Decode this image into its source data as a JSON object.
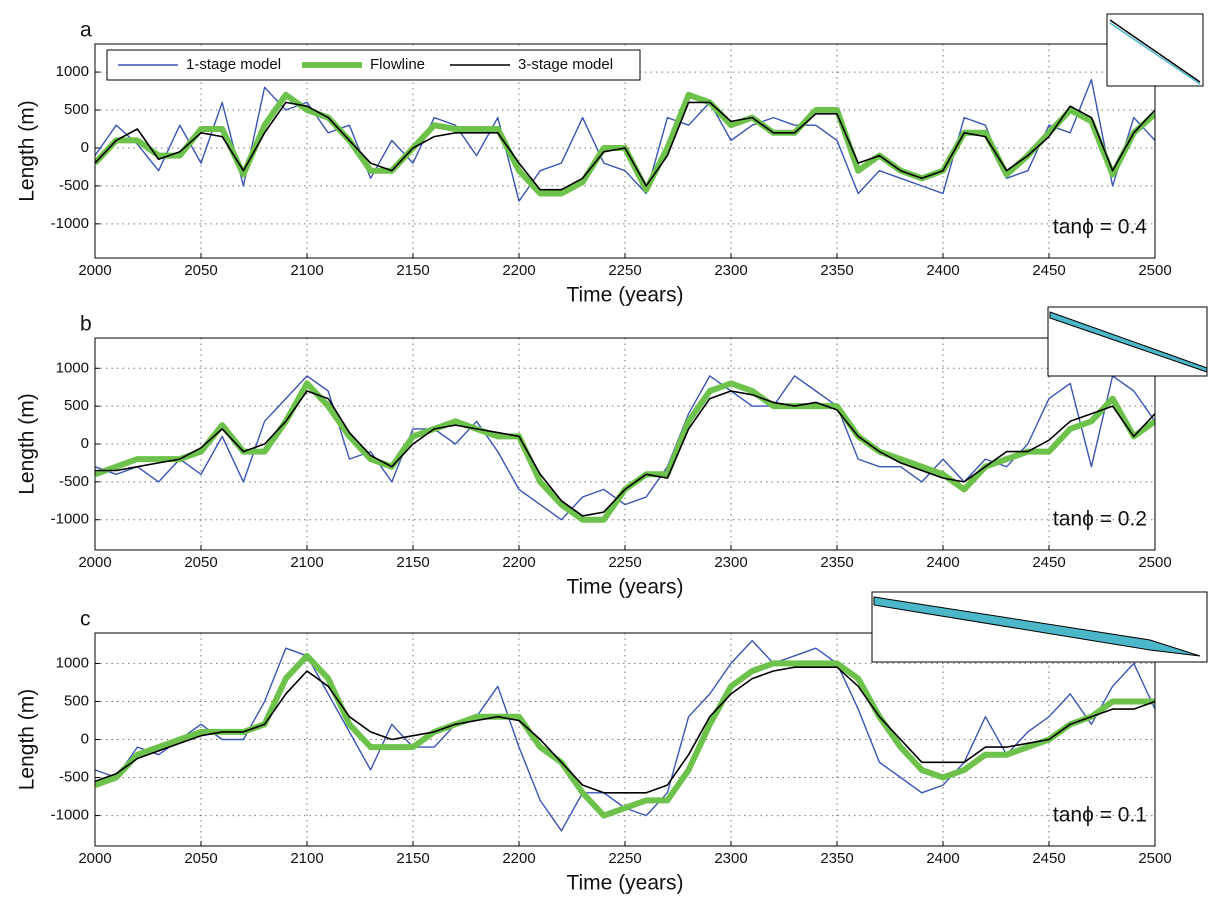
{
  "chart_data": [
    {
      "type": "line",
      "panel_label": "a",
      "annotation": "tanϕ = 0.4",
      "xlabel": "Time (years)",
      "ylabel": "Length (m)",
      "x": [
        2000,
        2010,
        2020,
        2030,
        2040,
        2050,
        2060,
        2070,
        2080,
        2090,
        2100,
        2110,
        2120,
        2130,
        2140,
        2150,
        2160,
        2170,
        2180,
        2190,
        2200,
        2210,
        2220,
        2230,
        2240,
        2250,
        2260,
        2270,
        2280,
        2290,
        2300,
        2310,
        2320,
        2330,
        2340,
        2350,
        2360,
        2370,
        2380,
        2390,
        2400,
        2410,
        2420,
        2430,
        2440,
        2450,
        2460,
        2470,
        2480,
        2490,
        2500
      ],
      "xlim": [
        2000,
        2500
      ],
      "xticks": [
        2000,
        2050,
        2100,
        2150,
        2200,
        2250,
        2300,
        2350,
        2400,
        2450,
        2500
      ],
      "ylim": [
        -1450,
        1370
      ],
      "yticks": [
        -1000,
        -500,
        0,
        500,
        1000
      ],
      "grid": true,
      "legend": "top-left",
      "series": [
        {
          "name": "1-stage model",
          "color": "#3a55b4",
          "values": [
            -100,
            300,
            50,
            -300,
            300,
            -200,
            600,
            -500,
            800,
            500,
            600,
            200,
            300,
            -400,
            100,
            -200,
            400,
            300,
            -100,
            400,
            -700,
            -300,
            -200,
            400,
            -200,
            -300,
            -600,
            400,
            300,
            600,
            100,
            300,
            400,
            300,
            300,
            100,
            -600,
            -300,
            -400,
            -500,
            -600,
            400,
            300,
            -400,
            -300,
            300,
            200,
            900,
            -500,
            400,
            100
          ]
        },
        {
          "name": "Flowline",
          "color": "#6cc24a",
          "values": [
            -200,
            100,
            100,
            -100,
            -100,
            250,
            250,
            -350,
            300,
            700,
            500,
            400,
            100,
            -300,
            -300,
            0,
            300,
            250,
            250,
            250,
            -300,
            -600,
            -600,
            -450,
            0,
            0,
            -550,
            0,
            700,
            600,
            300,
            400,
            200,
            200,
            500,
            500,
            -300,
            -100,
            -300,
            -400,
            -300,
            200,
            200,
            -350,
            -100,
            200,
            500,
            350,
            -350,
            200,
            450
          ]
        },
        {
          "name": "3-stage model",
          "color": "#000000",
          "values": [
            -200,
            100,
            250,
            -150,
            -50,
            200,
            150,
            -300,
            200,
            600,
            550,
            400,
            100,
            -200,
            -300,
            0,
            150,
            200,
            200,
            200,
            -200,
            -550,
            -550,
            -400,
            -50,
            0,
            -500,
            -100,
            600,
            600,
            350,
            400,
            200,
            200,
            450,
            450,
            -200,
            -100,
            -300,
            -400,
            -300,
            200,
            150,
            -300,
            -100,
            150,
            550,
            400,
            -300,
            200,
            500
          ]
        }
      ]
    },
    {
      "type": "line",
      "panel_label": "b",
      "annotation": "tanϕ = 0.2",
      "xlabel": "Time (years)",
      "ylabel": "Length (m)",
      "x": [
        2000,
        2010,
        2020,
        2030,
        2040,
        2050,
        2060,
        2070,
        2080,
        2090,
        2100,
        2110,
        2120,
        2130,
        2140,
        2150,
        2160,
        2170,
        2180,
        2190,
        2200,
        2210,
        2220,
        2230,
        2240,
        2250,
        2260,
        2270,
        2280,
        2290,
        2300,
        2310,
        2320,
        2330,
        2340,
        2350,
        2360,
        2370,
        2380,
        2390,
        2400,
        2410,
        2420,
        2430,
        2440,
        2450,
        2460,
        2470,
        2480,
        2490,
        2500
      ],
      "xlim": [
        2000,
        2500
      ],
      "xticks": [
        2000,
        2050,
        2100,
        2150,
        2200,
        2250,
        2300,
        2350,
        2400,
        2450,
        2500
      ],
      "ylim": [
        -1400,
        1400
      ],
      "yticks": [
        -1000,
        -500,
        0,
        500,
        1000
      ],
      "grid": true,
      "series": [
        {
          "color": "#3a55b4",
          "values": [
            -300,
            -400,
            -300,
            -500,
            -200,
            -400,
            100,
            -500,
            300,
            600,
            900,
            700,
            -200,
            -100,
            -500,
            200,
            200,
            0,
            300,
            -100,
            -600,
            -800,
            -1000,
            -700,
            -600,
            -800,
            -700,
            -300,
            400,
            900,
            700,
            500,
            500,
            900,
            700,
            500,
            -200,
            -300,
            -300,
            -500,
            -200,
            -500,
            -200,
            -300,
            0,
            600,
            800,
            -300,
            900,
            700,
            300
          ]
        },
        {
          "color": "#6cc24a",
          "values": [
            -400,
            -300,
            -200,
            -200,
            -200,
            -100,
            250,
            -100,
            -100,
            300,
            800,
            500,
            100,
            -200,
            -300,
            100,
            200,
            300,
            200,
            100,
            100,
            -500,
            -800,
            -1000,
            -1000,
            -600,
            -400,
            -400,
            300,
            700,
            800,
            700,
            500,
            500,
            500,
            500,
            100,
            -100,
            -200,
            -300,
            -400,
            -600,
            -300,
            -200,
            -100,
            -100,
            200,
            300,
            600,
            100,
            300
          ]
        },
        {
          "color": "#000000",
          "values": [
            -350,
            -350,
            -300,
            -250,
            -200,
            -50,
            200,
            -100,
            0,
            300,
            700,
            600,
            150,
            -150,
            -300,
            0,
            200,
            250,
            200,
            150,
            100,
            -400,
            -750,
            -950,
            -900,
            -600,
            -400,
            -450,
            200,
            600,
            700,
            650,
            550,
            500,
            550,
            450,
            100,
            -100,
            -250,
            -350,
            -450,
            -500,
            -300,
            -100,
            -100,
            50,
            300,
            400,
            500,
            100,
            400
          ]
        }
      ]
    },
    {
      "type": "line",
      "panel_label": "c",
      "annotation": "tanϕ = 0.1",
      "xlabel": "Time (years)",
      "ylabel": "Length (m)",
      "x": [
        2000,
        2010,
        2020,
        2030,
        2040,
        2050,
        2060,
        2070,
        2080,
        2090,
        2100,
        2110,
        2120,
        2130,
        2140,
        2150,
        2160,
        2170,
        2180,
        2190,
        2200,
        2210,
        2220,
        2230,
        2240,
        2250,
        2260,
        2270,
        2280,
        2290,
        2300,
        2310,
        2320,
        2330,
        2340,
        2350,
        2360,
        2370,
        2380,
        2390,
        2400,
        2410,
        2420,
        2430,
        2440,
        2450,
        2460,
        2470,
        2480,
        2490,
        2500
      ],
      "xlim": [
        2000,
        2500
      ],
      "xticks": [
        2000,
        2050,
        2100,
        2150,
        2200,
        2250,
        2300,
        2350,
        2400,
        2450,
        2500
      ],
      "ylim": [
        -1400,
        1400
      ],
      "yticks": [
        -1000,
        -500,
        0,
        500,
        1000
      ],
      "grid": true,
      "series": [
        {
          "color": "#3a55b4",
          "values": [
            -400,
            -500,
            -100,
            -200,
            0,
            200,
            0,
            0,
            500,
            1200,
            1100,
            600,
            100,
            -400,
            200,
            -100,
            -100,
            200,
            300,
            700,
            -100,
            -800,
            -1200,
            -700,
            -700,
            -900,
            -1000,
            -700,
            300,
            600,
            1000,
            1300,
            1000,
            1100,
            1200,
            1000,
            400,
            -300,
            -500,
            -700,
            -600,
            -300,
            300,
            -200,
            100,
            300,
            600,
            200,
            700,
            1000,
            400
          ]
        },
        {
          "color": "#6cc24a",
          "values": [
            -600,
            -500,
            -200,
            -100,
            0,
            100,
            100,
            100,
            200,
            800,
            1100,
            800,
            200,
            -100,
            -100,
            -100,
            100,
            200,
            300,
            300,
            300,
            -100,
            -300,
            -700,
            -1000,
            -900,
            -800,
            -800,
            -400,
            200,
            700,
            900,
            1000,
            1000,
            1000,
            1000,
            800,
            300,
            -100,
            -400,
            -500,
            -400,
            -200,
            -200,
            -100,
            0,
            200,
            300,
            500,
            500,
            500
          ]
        },
        {
          "color": "#000000",
          "values": [
            -550,
            -450,
            -250,
            -150,
            -50,
            50,
            100,
            100,
            200,
            600,
            900,
            700,
            300,
            100,
            0,
            50,
            100,
            200,
            250,
            300,
            250,
            0,
            -300,
            -600,
            -700,
            -700,
            -700,
            -600,
            -200,
            300,
            600,
            800,
            900,
            950,
            950,
            950,
            700,
            300,
            0,
            -300,
            -300,
            -300,
            -100,
            -100,
            -50,
            0,
            200,
            300,
            400,
            400,
            500
          ]
        }
      ]
    }
  ]
}
